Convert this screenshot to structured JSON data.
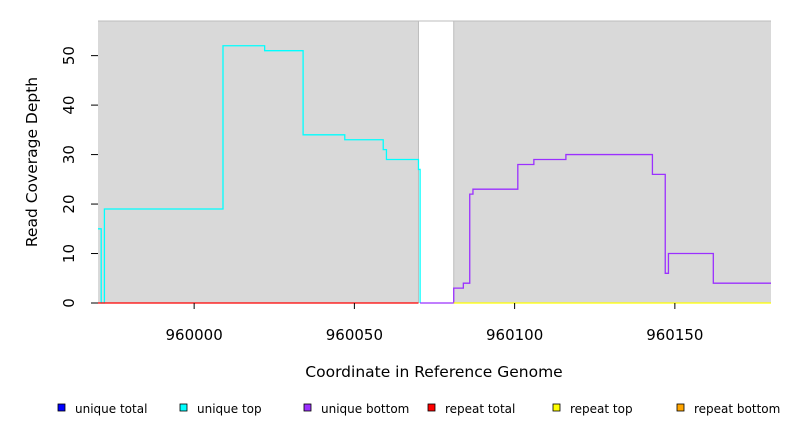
{
  "chart_data": {
    "type": "line",
    "title": "",
    "xlabel": "Coordinate in Reference Genome",
    "ylabel": "Read Coverage Depth",
    "xlim": [
      959970,
      960180
    ],
    "ylim": [
      0,
      57
    ],
    "xticks": [
      960000,
      960050,
      960100,
      960150
    ],
    "yticks": [
      0,
      10,
      20,
      30,
      40,
      50
    ],
    "grid": false,
    "panel_background": "#d9d9d9",
    "gap": [
      960070,
      960081
    ],
    "legend_position": "bottom",
    "series": [
      {
        "name": "unique total",
        "color": "#0000ff",
        "x": [],
        "y": []
      },
      {
        "name": "unique top",
        "color": "#00ffff",
        "x": [
          959970,
          959971,
          959971,
          959972,
          959972,
          960009,
          960009,
          960022,
          960022,
          960034,
          960034,
          960047,
          960047,
          960059,
          960059,
          960060,
          960060,
          960070,
          960070,
          960070.5,
          960070.5
        ],
        "y": [
          15,
          15,
          0,
          0,
          19,
          19,
          52,
          52,
          51,
          51,
          34,
          34,
          33,
          33,
          31,
          31,
          29,
          29,
          27,
          27,
          0
        ]
      },
      {
        "name": "unique bottom",
        "color": "#9b30ff",
        "x": [
          960070.5,
          960081,
          960081,
          960084,
          960084,
          960086,
          960086,
          960087,
          960087,
          960101,
          960101,
          960106,
          960106,
          960116,
          960116,
          960143,
          960143,
          960147,
          960147,
          960148,
          960148,
          960162,
          960162,
          960180
        ],
        "y": [
          0,
          0,
          3,
          3,
          4,
          4,
          22,
          22,
          23,
          23,
          28,
          28,
          29,
          29,
          30,
          30,
          26,
          26,
          6,
          6,
          10,
          10,
          4,
          4
        ]
      },
      {
        "name": "repeat total",
        "color": "#ff0000",
        "x": [
          959970,
          960070
        ],
        "y": [
          0,
          0
        ]
      },
      {
        "name": "repeat top",
        "color": "#ffff00",
        "x": [
          960081,
          960180
        ],
        "y": [
          0,
          0
        ]
      },
      {
        "name": "repeat bottom",
        "color": "#ffa500",
        "x": [],
        "y": []
      }
    ]
  }
}
